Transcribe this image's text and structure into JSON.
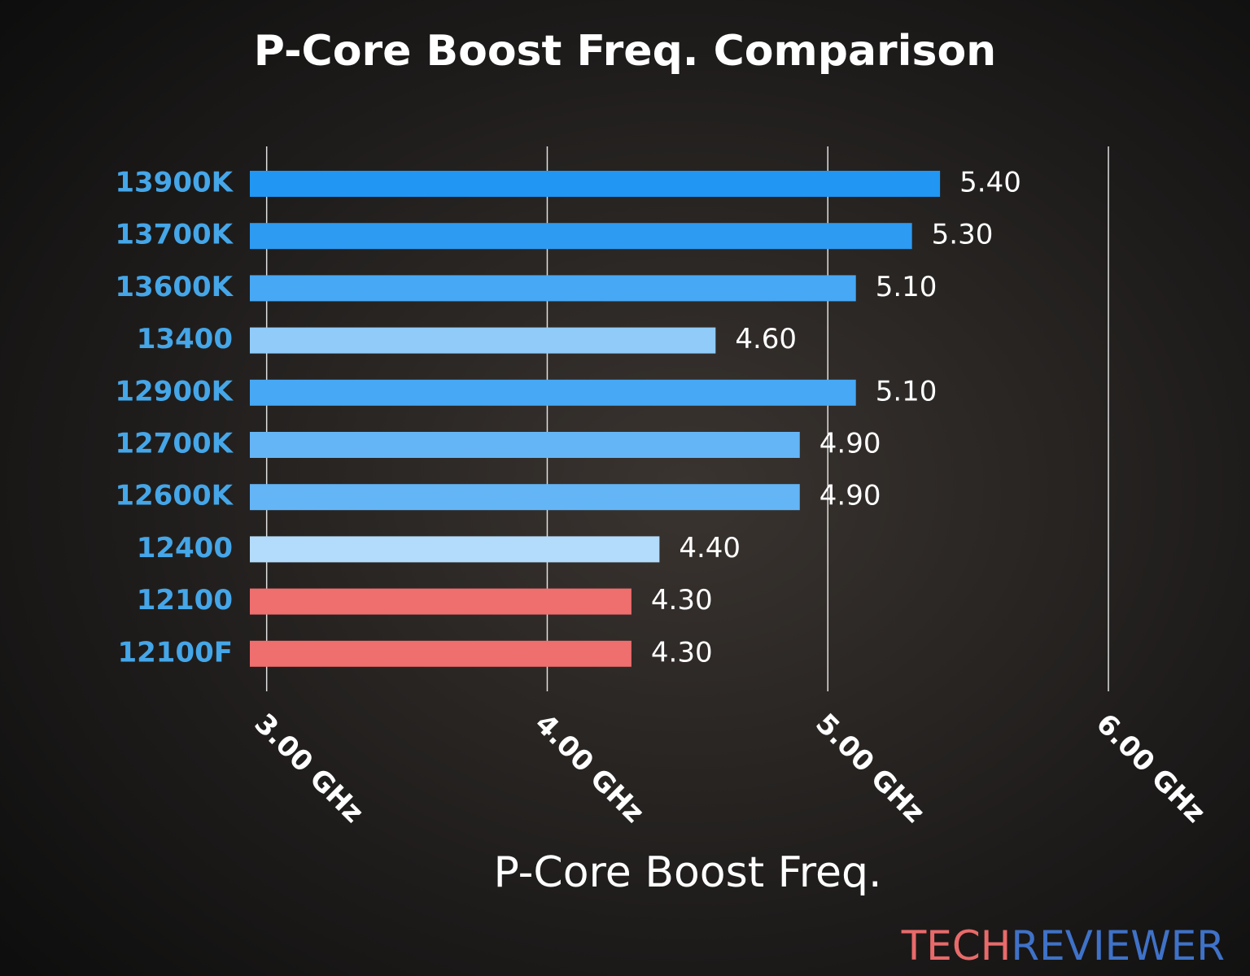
{
  "chart_data": {
    "type": "bar",
    "orientation": "horizontal",
    "title": "P-Core Boost Freq. Comparison",
    "x_label": "P-Core Boost Freq.",
    "categories": [
      "13900K",
      "13700K",
      "13600K",
      "13400",
      "12900K",
      "12700K",
      "12600K",
      "12400",
      "12100",
      "12100F"
    ],
    "values": [
      5.4,
      5.3,
      5.1,
      4.6,
      5.1,
      4.9,
      4.9,
      4.4,
      4.3,
      4.3
    ],
    "value_labels": [
      "5.40",
      "5.30",
      "5.10",
      "4.60",
      "5.10",
      "4.90",
      "4.90",
      "4.40",
      "4.30",
      "4.30"
    ],
    "colors": [
      "#2196f3",
      "#2e9bf3",
      "#47a8f5",
      "#90cbf9",
      "#47a8f5",
      "#64b5f6",
      "#64b5f6",
      "#b3dbfb",
      "#ef6e6e",
      "#ef6e6e"
    ],
    "xlim": [
      2.94,
      6.0
    ],
    "xticks": [
      {
        "value": 3,
        "label": "3.00 GHz"
      },
      {
        "value": 4,
        "label": "4.00 GHz"
      },
      {
        "value": 5,
        "label": "5.00 GHz"
      },
      {
        "value": 6,
        "label": "6.00 GHz"
      }
    ],
    "grid": true,
    "brand": [
      "TECH",
      "REVIEWER"
    ]
  }
}
